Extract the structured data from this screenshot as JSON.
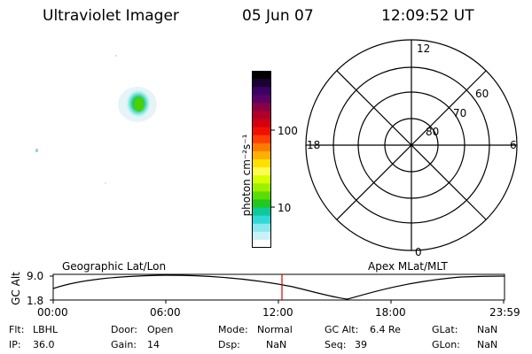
{
  "header": {
    "instrument": "Ultraviolet Imager",
    "date": "05 Jun 07",
    "time": "12:09:52 UT"
  },
  "colorbar": {
    "unit_label": "photon cm⁻²s⁻¹",
    "ticks": [
      "100",
      "10"
    ],
    "colors": [
      "#000000",
      "#1a0033",
      "#3a0066",
      "#5a0066",
      "#8a0044",
      "#b0002a",
      "#d40010",
      "#f01000",
      "#ff4000",
      "#ff7a00",
      "#ffb000",
      "#ffe000",
      "#fffb50",
      "#d8ff00",
      "#9ef000",
      "#5cdc00",
      "#20c820",
      "#10c89a",
      "#30d8d8",
      "#8ce8ef",
      "#c8f2f5",
      "#ffffff"
    ]
  },
  "polar": {
    "mlt_labels": {
      "top": "12",
      "right": "6",
      "bottom": "0",
      "left": "18"
    },
    "lat_labels": [
      "80",
      "70",
      "60"
    ]
  },
  "timeline": {
    "ylabel": "GC Alt",
    "ymax": "9.0",
    "ymin": "1.8",
    "left_title": "Geographic Lat/Lon",
    "right_title": "Apex MLat/MLT",
    "xticks": [
      "00:00",
      "06:00",
      "12:00",
      "18:00",
      "23:59"
    ],
    "marker_color": "#e00000"
  },
  "status": {
    "flt_label": "Flt:",
    "flt_value": "LBHL",
    "ip_label": "IP:",
    "ip_value": "36.0",
    "door_label": "Door:",
    "door_value": "Open",
    "gain_label": "Gain:",
    "gain_value": "14",
    "mode_label": "Mode:",
    "mode_value": "Normal",
    "dsp_label": "Dsp:",
    "dsp_value": "NaN",
    "gcalt_label": "GC Alt:",
    "gcalt_value": "6.4 Re",
    "seq_label": "Seq:",
    "seq_value": "39",
    "glat_label": "GLat:",
    "glat_value": "NaN",
    "glon_label": "GLon:",
    "glon_value": "NaN"
  }
}
